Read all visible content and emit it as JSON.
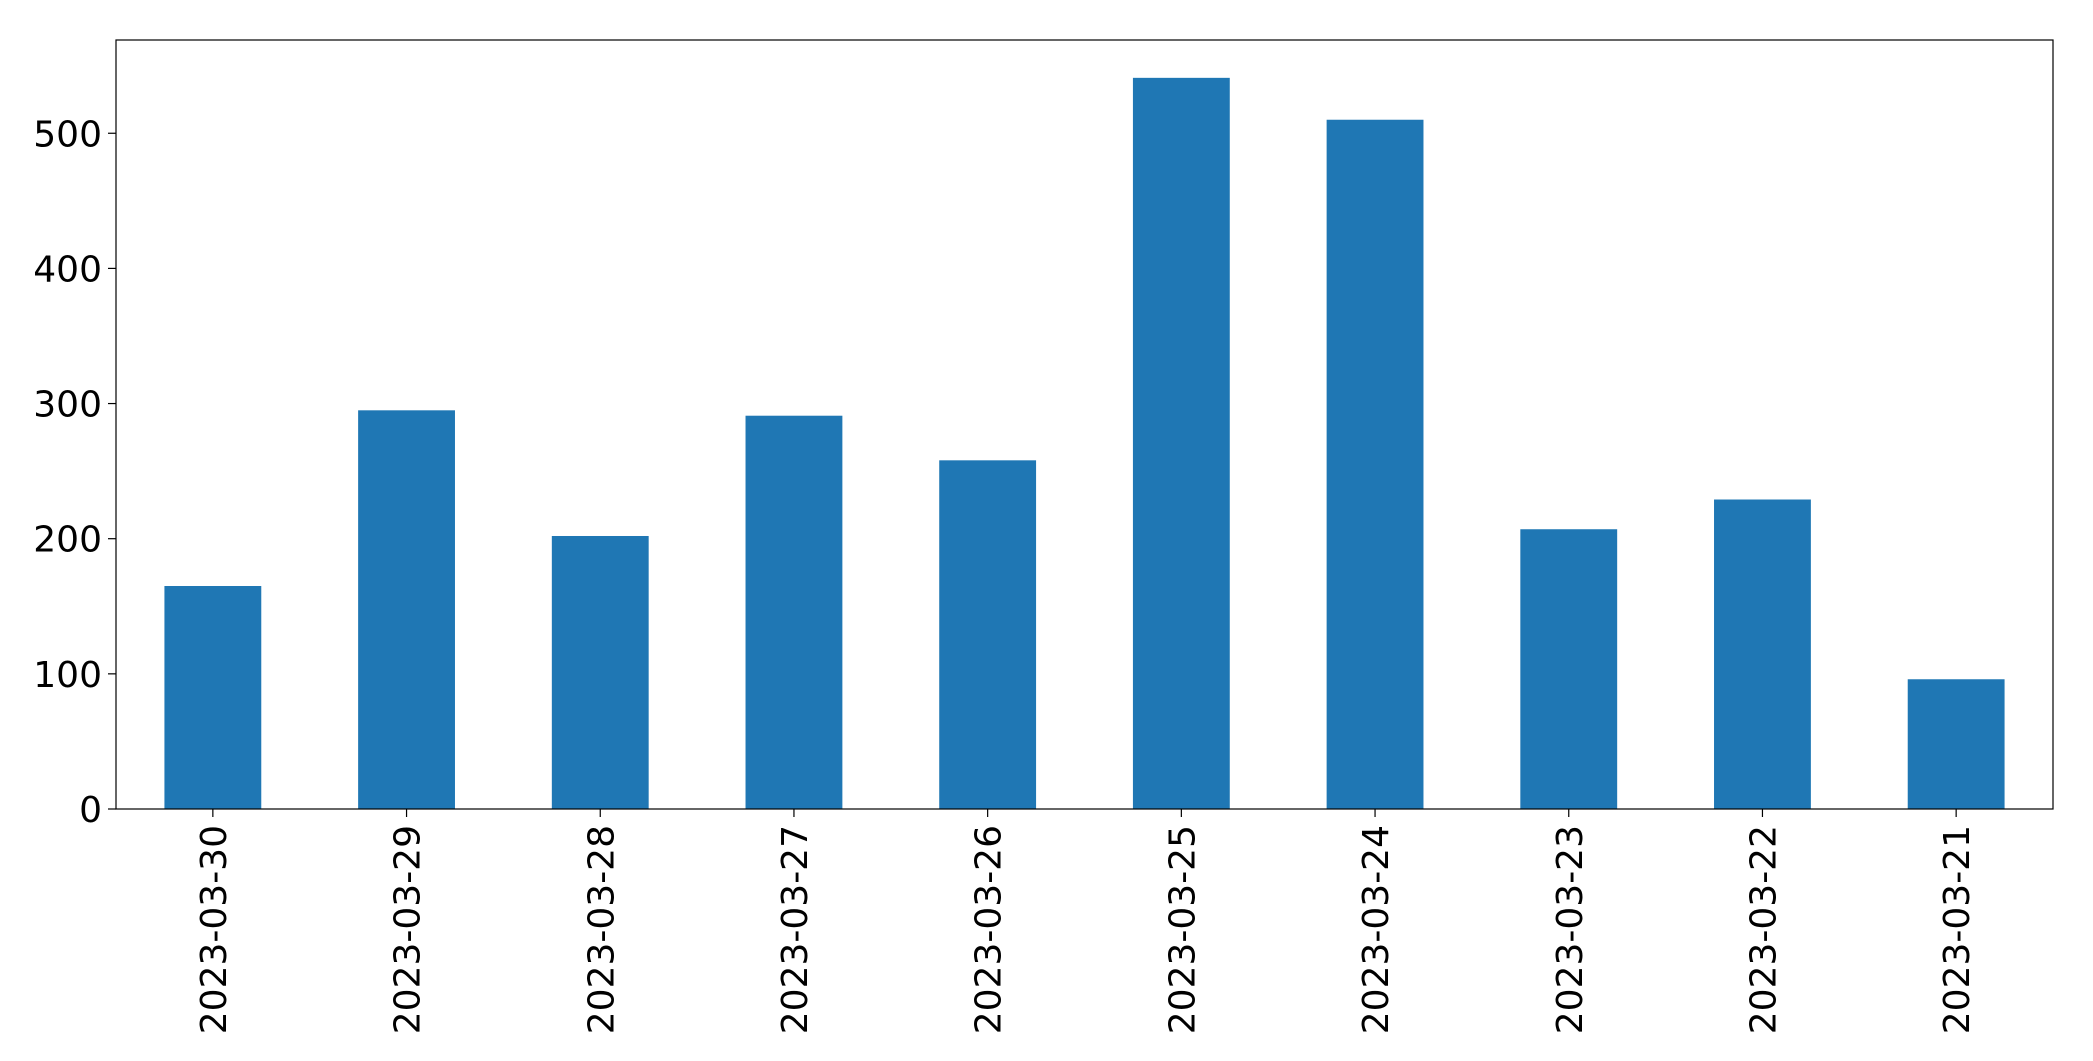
{
  "chart_data": {
    "type": "bar",
    "categories": [
      "2023-03-30",
      "2023-03-29",
      "2023-03-28",
      "2023-03-27",
      "2023-03-26",
      "2023-03-25",
      "2023-03-24",
      "2023-03-23",
      "2023-03-22",
      "2023-03-21"
    ],
    "values": [
      165,
      295,
      202,
      291,
      258,
      541,
      510,
      207,
      229,
      96
    ],
    "color": "#1f77b4",
    "ylim": [
      0,
      569
    ],
    "yticks": [
      0,
      100,
      200,
      300,
      400,
      500
    ],
    "grid": false
  }
}
